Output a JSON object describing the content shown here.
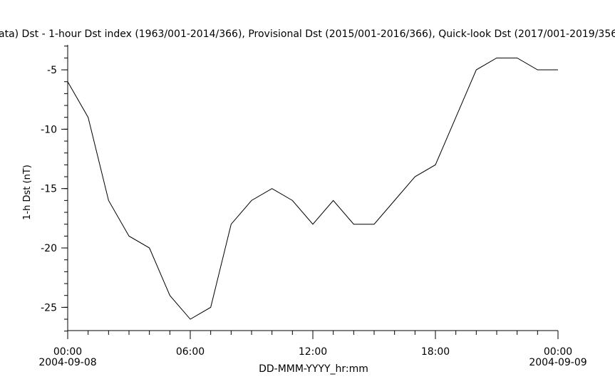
{
  "chart_data": {
    "type": "line",
    "title": "ata)  Dst - 1-hour Dst index (1963/001-2014/366), Provisional Dst (2015/001-2016/366), Quick-look Dst (2017/001-2019/356",
    "x_label": "DD-MMM-YYYY_hr:mm",
    "y_label": "1-h Dst (nT)",
    "x": [
      0,
      1,
      2,
      3,
      4,
      5,
      6,
      7,
      8,
      9,
      10,
      11,
      12,
      13,
      14,
      15,
      16,
      17,
      18,
      19,
      20,
      21,
      22,
      23,
      24
    ],
    "series": [
      {
        "name": "Dst",
        "color": "#000000",
        "values": [
          -6,
          -9,
          -16,
          -19,
          -20,
          -24,
          -26,
          -25,
          -18,
          -16,
          -15,
          -16,
          -18,
          -16,
          -18,
          -18,
          -16,
          -14,
          -13,
          -9,
          -5,
          -4,
          -4,
          -5,
          -5
        ]
      }
    ],
    "xlim": [
      0,
      24
    ],
    "xticks": [
      {
        "value": 0,
        "label": "00:00",
        "date": "2004-09-08"
      },
      {
        "value": 6,
        "label": "06:00"
      },
      {
        "value": 12,
        "label": "12:00"
      },
      {
        "value": 18,
        "label": "18:00"
      },
      {
        "value": 24,
        "label": "00:00",
        "date": "2004-09-09"
      }
    ],
    "ylim": [
      -27,
      -3
    ],
    "yticks": [
      -5,
      -10,
      -15,
      -20,
      -25
    ]
  }
}
